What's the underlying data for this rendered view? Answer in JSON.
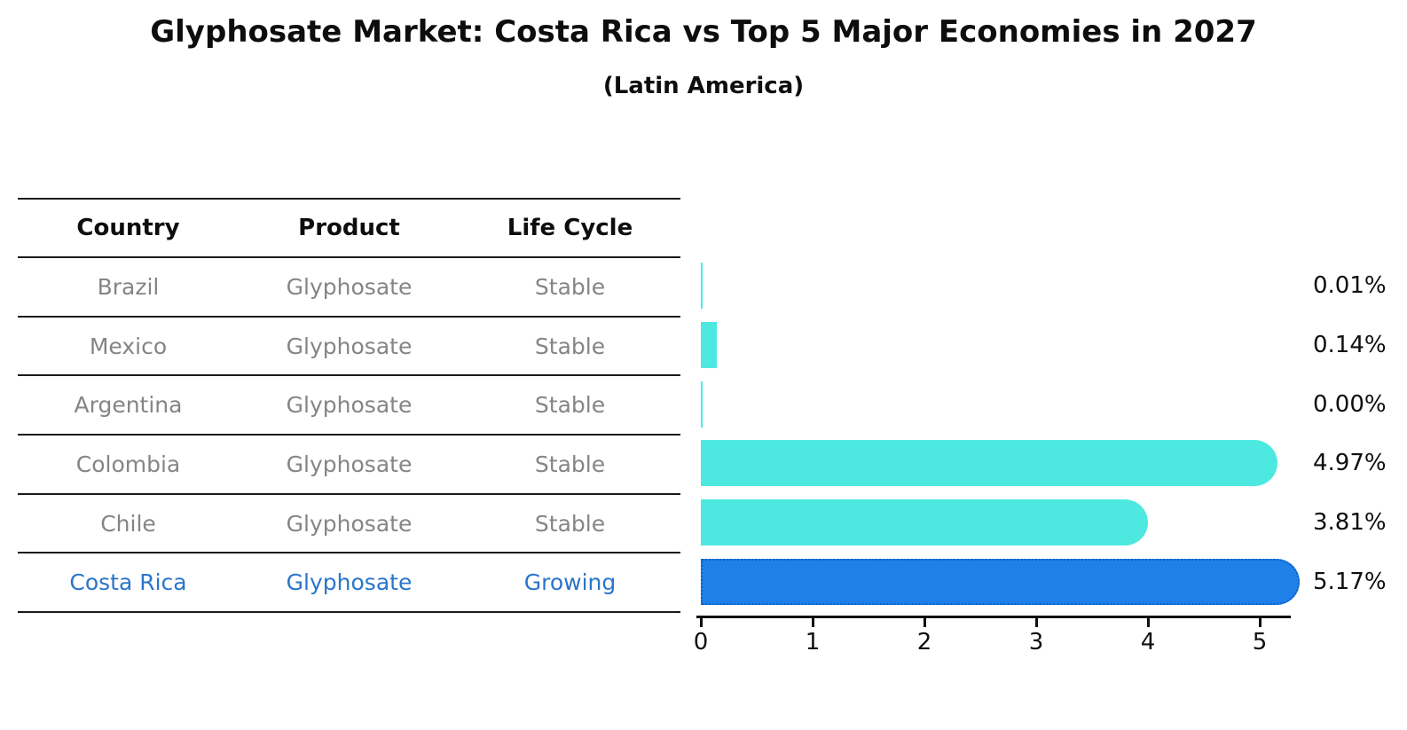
{
  "chart_data": {
    "type": "bar",
    "orientation": "horizontal",
    "title": "Glyphosate Market: Costa Rica vs Top 5 Major Economies in 2027",
    "subtitle": "(Latin America)",
    "categories": [
      "Brazil",
      "Mexico",
      "Argentina",
      "Colombia",
      "Chile",
      "Costa Rica"
    ],
    "values": [
      0.01,
      0.14,
      0.0,
      4.97,
      3.81,
      5.17
    ],
    "value_labels": [
      "0.01%",
      "0.14%",
      "0.00%",
      "4.97%",
      "3.81%",
      "5.17%"
    ],
    "unit": "%",
    "xlabel": "",
    "ylabel": "",
    "xlim": [
      0,
      5.4
    ],
    "x_ticks": [
      "0",
      "1",
      "2",
      "3",
      "4",
      "5"
    ],
    "grid": false,
    "legend": false,
    "highlight_index": 5,
    "colors": {
      "bar": "#4de9e0",
      "highlight_bar": "#1e80e8",
      "highlight_border": "#0c5fc8",
      "axis": "#0f0f0f",
      "value_text": "#0f0f0f"
    }
  },
  "table": {
    "columns": [
      "Country",
      "Product",
      "Life Cycle"
    ],
    "rows": [
      {
        "country": "Brazil",
        "product": "Glyphosate",
        "life_cycle": "Stable",
        "highlight": false
      },
      {
        "country": "Mexico",
        "product": "Glyphosate",
        "life_cycle": "Stable",
        "highlight": false
      },
      {
        "country": "Argentina",
        "product": "Glyphosate",
        "life_cycle": "Stable",
        "highlight": false
      },
      {
        "country": "Colombia",
        "product": "Glyphosate",
        "life_cycle": "Stable",
        "highlight": false
      },
      {
        "country": "Chile",
        "product": "Glyphosate",
        "life_cycle": "Stable",
        "highlight": false
      },
      {
        "country": "Costa Rica",
        "product": "Glyphosate",
        "life_cycle": "Growing",
        "highlight": true
      }
    ],
    "colors": {
      "header_text": "#0d0d0d",
      "row_text": "#858585",
      "highlight_text": "#2a75c9",
      "line": "#1a1a1a"
    }
  }
}
